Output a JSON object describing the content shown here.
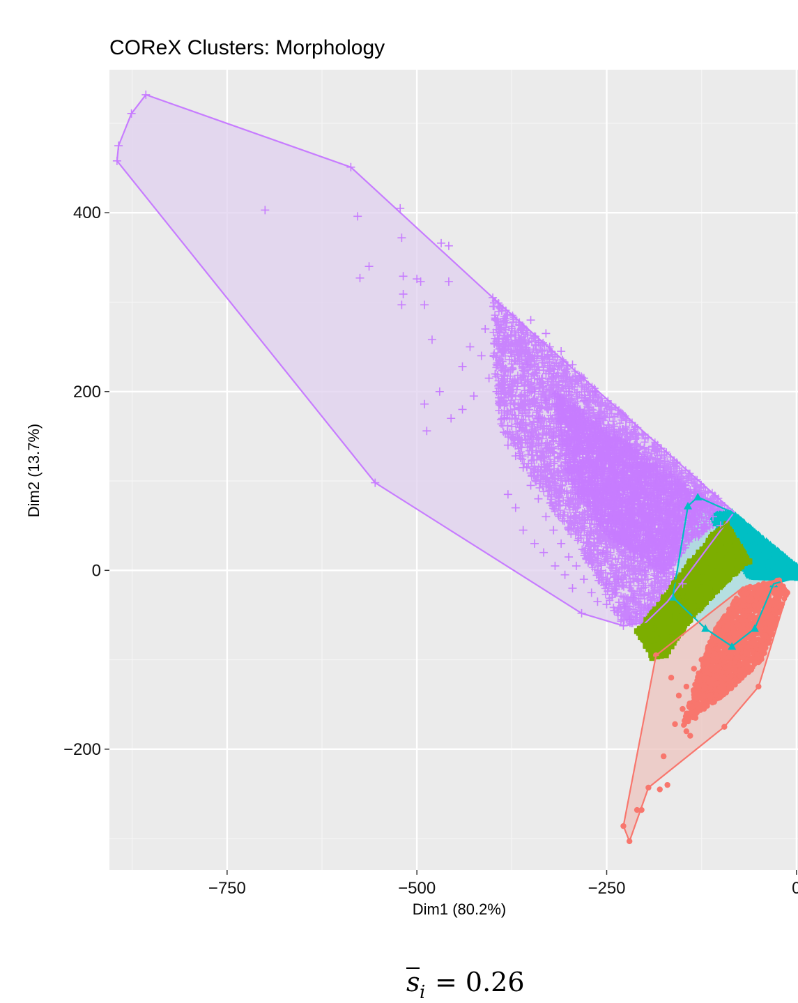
{
  "chart_data": {
    "type": "scatter",
    "title": "COReX Clusters: Morphology",
    "xlabel": "Dim1 (80.2%)",
    "ylabel": "Dim2 (13.7%)",
    "xlim": [
      -905,
      2
    ],
    "ylim": [
      -335,
      560
    ],
    "xticks": [
      -750,
      -500,
      -250,
      0
    ],
    "yticks": [
      -200,
      0,
      200,
      400
    ],
    "xtick_labels": [
      "−750",
      "−500",
      "−250",
      "0"
    ],
    "ytick_labels": [
      "−200",
      "0",
      "200",
      "400"
    ],
    "grid": true,
    "legend": "none",
    "caption": {
      "prefix": "s",
      "subscript": "i",
      "value": "= 0.26"
    },
    "clusters": [
      {
        "id": "purple",
        "marker": "plus",
        "color": "#c77cff",
        "fill": "#dfcfee",
        "hull": [
          [
            -857,
            532
          ],
          [
            -876,
            511
          ],
          [
            -893,
            475
          ],
          [
            -895,
            458
          ],
          [
            -555,
            98
          ],
          [
            -283,
            -48
          ],
          [
            -228,
            -62
          ],
          [
            -198,
            -58
          ],
          [
            -170,
            -35
          ],
          [
            -82,
            65
          ],
          [
            -400,
            305
          ],
          [
            -587,
            451
          ]
        ],
        "points": [
          [
            -857,
            532
          ],
          [
            -876,
            511
          ],
          [
            -893,
            475
          ],
          [
            -895,
            458
          ],
          [
            -587,
            451
          ],
          [
            -522,
            405
          ],
          [
            -700,
            403
          ],
          [
            -578,
            396
          ],
          [
            -520,
            372
          ],
          [
            -468,
            366
          ],
          [
            -458,
            363
          ],
          [
            -563,
            340
          ],
          [
            -575,
            327
          ],
          [
            -518,
            329
          ],
          [
            -500,
            326
          ],
          [
            -495,
            323
          ],
          [
            -458,
            323
          ],
          [
            -518,
            309
          ],
          [
            -520,
            297
          ],
          [
            -490,
            297
          ],
          [
            -400,
            305
          ],
          [
            -480,
            258
          ],
          [
            -555,
            98
          ],
          [
            -283,
            -48
          ],
          [
            -228,
            -62
          ],
          [
            -490,
            186
          ],
          [
            -487,
            156
          ],
          [
            -470,
            200
          ],
          [
            -440,
            228
          ],
          [
            -430,
            250
          ],
          [
            -410,
            270
          ],
          [
            -350,
            280
          ],
          [
            -330,
            265
          ],
          [
            -385,
            170
          ],
          [
            -380,
            140
          ],
          [
            -370,
            128
          ],
          [
            -360,
            115
          ],
          [
            -350,
            95
          ],
          [
            -340,
            80
          ],
          [
            -330,
            60
          ],
          [
            -320,
            45
          ],
          [
            -310,
            30
          ],
          [
            -300,
            15
          ],
          [
            -290,
            5
          ],
          [
            -280,
            -10
          ],
          [
            -270,
            -25
          ],
          [
            -250,
            -38
          ],
          [
            -240,
            -45
          ],
          [
            -220,
            -55
          ],
          [
            -370,
            70
          ],
          [
            -380,
            85
          ],
          [
            -355,
            230
          ],
          [
            -345,
            200
          ],
          [
            -320,
            150
          ],
          [
            -300,
            100
          ],
          [
            -270,
            60
          ],
          [
            -255,
            20
          ],
          [
            -235,
            -10
          ],
          [
            -215,
            -30
          ],
          [
            -320,
            220
          ],
          [
            -300,
            200
          ],
          [
            -280,
            190
          ],
          [
            -260,
            170
          ],
          [
            -240,
            155
          ],
          [
            -220,
            140
          ],
          [
            -200,
            125
          ],
          [
            -180,
            115
          ],
          [
            -160,
            100
          ],
          [
            -140,
            90
          ],
          [
            -120,
            80
          ],
          [
            -230,
            110
          ],
          [
            -210,
            90
          ],
          [
            -190,
            70
          ],
          [
            -170,
            55
          ],
          [
            -150,
            40
          ],
          [
            -260,
            130
          ],
          [
            -245,
            95
          ],
          [
            -225,
            75
          ],
          [
            -205,
            45
          ],
          [
            -185,
            30
          ],
          [
            -200,
            0
          ],
          [
            -215,
            15
          ],
          [
            -290,
            150
          ],
          [
            -275,
            120
          ],
          [
            -258,
            90
          ],
          [
            -240,
            70
          ],
          [
            -300,
            160
          ],
          [
            -310,
            175
          ],
          [
            -330,
            190
          ],
          [
            -340,
            170
          ],
          [
            -350,
            150
          ],
          [
            -365,
            160
          ],
          [
            -395,
            200
          ],
          [
            -405,
            215
          ],
          [
            -415,
            240
          ],
          [
            -425,
            195
          ],
          [
            -440,
            180
          ],
          [
            -455,
            170
          ],
          [
            -360,
            45
          ],
          [
            -345,
            30
          ],
          [
            -333,
            20
          ],
          [
            -318,
            5
          ],
          [
            -305,
            -5
          ],
          [
            -295,
            -20
          ],
          [
            -262,
            -35
          ],
          [
            -250,
            -15
          ],
          [
            -238,
            -25
          ],
          [
            -226,
            -40
          ],
          [
            -210,
            -48
          ],
          [
            -195,
            -42
          ],
          [
            -180,
            -30
          ],
          [
            -110,
            60
          ],
          [
            -100,
            50
          ],
          [
            -130,
            75
          ],
          [
            -145,
            65
          ],
          [
            -165,
            80
          ],
          [
            -185,
            95
          ],
          [
            -205,
            105
          ],
          [
            -225,
            120
          ],
          [
            -250,
            145
          ],
          [
            -270,
            165
          ],
          [
            -285,
            180
          ],
          [
            -295,
            130
          ],
          [
            -275,
            100
          ],
          [
            -268,
            80
          ],
          [
            -248,
            55
          ],
          [
            -230,
            40
          ],
          [
            -212,
            28
          ],
          [
            -196,
            15
          ],
          [
            -178,
            5
          ],
          [
            -162,
            -5
          ],
          [
            -150,
            -15
          ],
          [
            -265,
            200
          ],
          [
            -280,
            215
          ],
          [
            -295,
            230
          ],
          [
            -310,
            245
          ],
          [
            -325,
            250
          ],
          [
            -340,
            255
          ]
        ],
        "density": [
          {
            "poly": [
              [
                -400,
                305
              ],
              [
                -82,
                65
              ],
              [
                -150,
                60
              ],
              [
                -165,
                -30
              ],
              [
                -198,
                -58
              ],
              [
                -228,
                -62
              ],
              [
                -283,
                20
              ],
              [
                -330,
                80
              ],
              [
                -390,
                160
              ],
              [
                -400,
                240
              ]
            ],
            "n": 4200,
            "alpha": 0.9
          },
          {
            "poly": [
              [
                -320,
                200
              ],
              [
                -90,
                62
              ],
              [
                -140,
                30
              ],
              [
                -175,
                -5
              ],
              [
                -250,
                40
              ],
              [
                -300,
                100
              ]
            ],
            "n": 2200,
            "alpha": 1
          }
        ]
      },
      {
        "id": "cyan",
        "marker": "triangle",
        "color": "#00bfc4",
        "fill": "#9fd9dc",
        "hull": [
          [
            -130,
            82
          ],
          [
            -143,
            72
          ],
          [
            -163,
            -30
          ],
          [
            -120,
            -65
          ],
          [
            -85,
            -85
          ],
          [
            -55,
            -65
          ],
          [
            -30,
            -15
          ],
          [
            2,
            -8
          ],
          [
            0,
            5
          ],
          [
            -85,
            65
          ]
        ],
        "points": [
          [
            -130,
            82
          ],
          [
            -143,
            72
          ],
          [
            -163,
            -30
          ],
          [
            -85,
            -85
          ],
          [
            -55,
            -65
          ],
          [
            -30,
            -15
          ],
          [
            2,
            -8
          ],
          [
            0,
            5
          ],
          [
            -85,
            65
          ],
          [
            -120,
            -65
          ]
        ],
        "density": [
          {
            "poly": [
              [
                -85,
                65
              ],
              [
                0,
                5
              ],
              [
                2,
                -8
              ],
              [
                -60,
                -8
              ],
              [
                -100,
                40
              ],
              [
                -110,
                62
              ]
            ],
            "n": 2600,
            "alpha": 1
          }
        ]
      },
      {
        "id": "green",
        "marker": "square",
        "color": "#7cae00",
        "fill": "#c2d891",
        "hull": [
          [
            -92,
            52
          ],
          [
            -62,
            10
          ],
          [
            -90,
            -10
          ],
          [
            -140,
            -55
          ],
          [
            -172,
            -95
          ],
          [
            -190,
            -98
          ],
          [
            -210,
            -68
          ],
          [
            -175,
            -30
          ],
          [
            -140,
            10
          ],
          [
            -110,
            40
          ]
        ],
        "points": [
          [
            -92,
            52
          ],
          [
            -62,
            10
          ],
          [
            -172,
            -95
          ],
          [
            -190,
            -98
          ],
          [
            -210,
            -68
          ],
          [
            -175,
            -30
          ],
          [
            -140,
            10
          ],
          [
            -110,
            40
          ],
          [
            -140,
            -55
          ],
          [
            -90,
            -10
          ]
        ],
        "density": [
          {
            "poly": [
              [
                -92,
                52
              ],
              [
                -62,
                10
              ],
              [
                -90,
                -10
              ],
              [
                -140,
                -55
              ],
              [
                -172,
                -95
              ],
              [
                -190,
                -98
              ],
              [
                -210,
                -68
              ],
              [
                -175,
                -30
              ],
              [
                -140,
                10
              ],
              [
                -110,
                40
              ]
            ],
            "n": 1800,
            "alpha": 1
          }
        ]
      },
      {
        "id": "red",
        "marker": "circle",
        "color": "#f8766d",
        "fill": "#ebc0bb",
        "hull": [
          [
            -185,
            -95
          ],
          [
            -72,
            -20
          ],
          [
            -22,
            -10
          ],
          [
            -12,
            -25
          ],
          [
            -50,
            -130
          ],
          [
            -95,
            -175
          ],
          [
            -195,
            -243
          ],
          [
            -220,
            -303
          ],
          [
            -228,
            -286
          ]
        ],
        "points": [
          [
            -220,
            -303
          ],
          [
            -228,
            -286
          ],
          [
            -195,
            -243
          ],
          [
            -185,
            -95
          ],
          [
            -12,
            -25
          ],
          [
            -50,
            -130
          ],
          [
            -95,
            -175
          ],
          [
            -170,
            -240
          ],
          [
            -180,
            -245
          ],
          [
            -210,
            -268
          ],
          [
            -204,
            -268
          ],
          [
            -175,
            -208
          ],
          [
            -160,
            -172
          ],
          [
            -150,
            -155
          ],
          [
            -145,
            -130
          ],
          [
            -165,
            -120
          ],
          [
            -155,
            -140
          ],
          [
            -135,
            -110
          ],
          [
            -125,
            -100
          ],
          [
            -115,
            -90
          ],
          [
            -110,
            -75
          ],
          [
            -100,
            -68
          ],
          [
            -90,
            -60
          ],
          [
            -80,
            -50
          ],
          [
            -70,
            -40
          ],
          [
            -60,
            -30
          ],
          [
            -50,
            -25
          ],
          [
            -40,
            -20
          ],
          [
            -30,
            -15
          ],
          [
            -105,
            -118
          ],
          [
            -115,
            -125
          ],
          [
            -122,
            -140
          ],
          [
            -128,
            -155
          ],
          [
            -133,
            -165
          ],
          [
            -140,
            -185
          ],
          [
            -145,
            -180
          ]
        ],
        "density": [
          {
            "poly": [
              [
                -72,
                -20
              ],
              [
                -22,
                -10
              ],
              [
                -12,
                -25
              ],
              [
                -45,
                -100
              ],
              [
                -95,
                -140
              ],
              [
                -130,
                -160
              ],
              [
                -150,
                -175
              ],
              [
                -130,
                -115
              ],
              [
                -110,
                -70
              ]
            ],
            "n": 1500,
            "alpha": 1
          }
        ]
      }
    ]
  }
}
